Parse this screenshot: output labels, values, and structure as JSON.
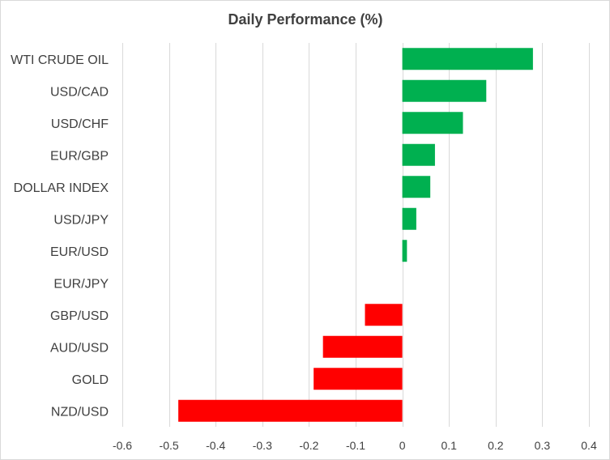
{
  "chart_data": {
    "type": "bar",
    "orientation": "horizontal",
    "title": "Daily Performance (%)",
    "categories": [
      "WTI CRUDE OIL",
      "USD/CAD",
      "USD/CHF",
      "EUR/GBP",
      "DOLLAR INDEX",
      "USD/JPY",
      "EUR/USD",
      "EUR/JPY",
      "GBP/USD",
      "AUD/USD",
      "GOLD",
      "NZD/USD"
    ],
    "values": [
      0.28,
      0.18,
      0.13,
      0.07,
      0.06,
      0.03,
      0.01,
      0.0,
      -0.08,
      -0.17,
      -0.19,
      -0.48
    ],
    "xlim": [
      -0.6,
      0.4
    ],
    "x_ticks": [
      "-0.6",
      "-0.5",
      "-0.4",
      "-0.3",
      "-0.2",
      "-0.1",
      "0",
      "0.1",
      "0.2",
      "0.3",
      "0.4"
    ],
    "x_tick_values": [
      -0.6,
      -0.5,
      -0.4,
      -0.3,
      -0.2,
      -0.1,
      0,
      0.1,
      0.2,
      0.3,
      0.4
    ],
    "xlabel": "",
    "ylabel": "",
    "grid": true,
    "legend": "none",
    "colors": {
      "positive": "#00b050",
      "negative": "#ff0000",
      "grid": "#d9d9d9",
      "text": "#404040"
    }
  }
}
